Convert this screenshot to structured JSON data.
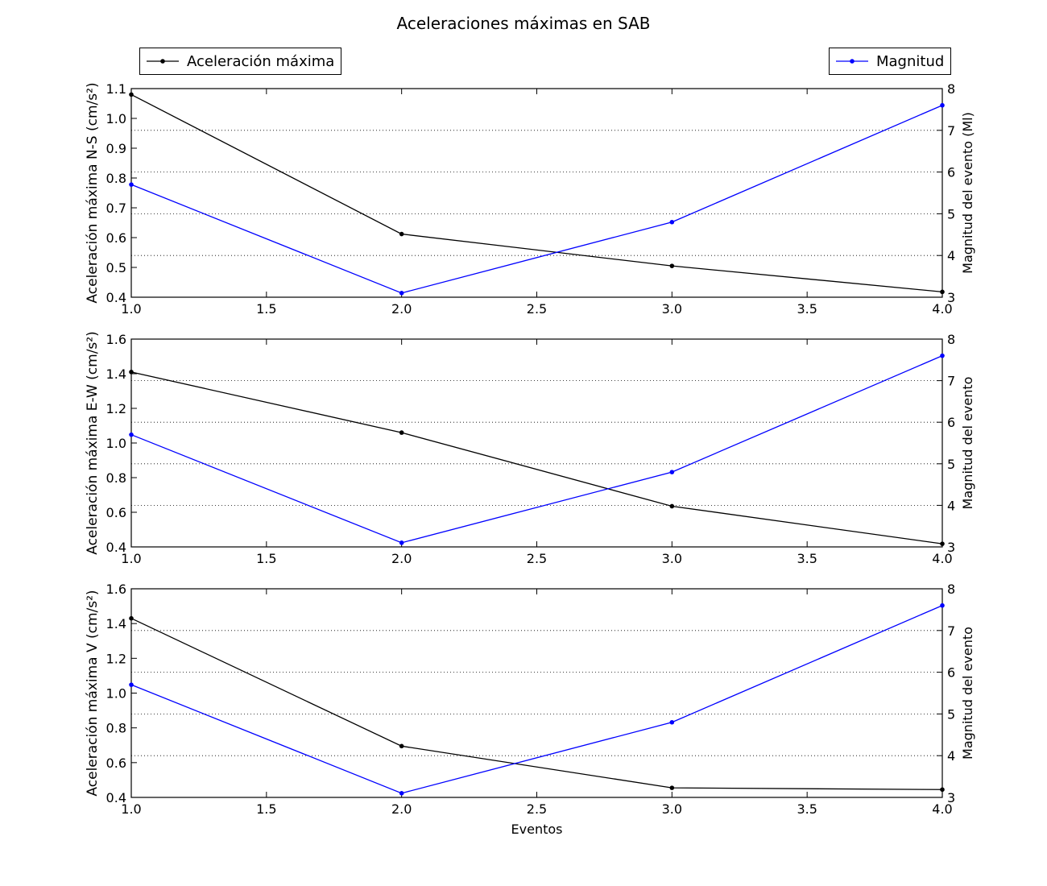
{
  "figure": {
    "title": "Aceleraciones máximas en SAB",
    "legend_left": "Aceleración máxima",
    "legend_right": "Magnitud",
    "colors": {
      "acceleration": "#000000",
      "magnitude": "#0000ff"
    }
  },
  "chart_data": [
    {
      "type": "line",
      "x": [
        1.0,
        2.0,
        3.0,
        4.0
      ],
      "xlim": [
        1.0,
        4.0
      ],
      "xticks": [
        "1.0",
        "1.5",
        "2.0",
        "2.5",
        "3.0",
        "3.5",
        "4.0"
      ],
      "xlabel": "",
      "ylabel": "Aceleración máxima N-S (cm/s²)",
      "ylim": [
        0.4,
        1.1
      ],
      "yticks": [
        "0.4",
        "0.5",
        "0.6",
        "0.7",
        "0.8",
        "0.9",
        "1.0",
        "1.1"
      ],
      "y2label": "Magnitud del evento (Ml)",
      "y2lim": [
        3,
        8
      ],
      "y2ticks": [
        "3",
        "4",
        "5",
        "6",
        "7",
        "8"
      ],
      "grid": "y2-dotted",
      "series": [
        {
          "name": "Aceleración máxima",
          "axis": "left",
          "values": [
            1.08,
            0.612,
            0.505,
            0.418
          ]
        },
        {
          "name": "Magnitud",
          "axis": "right",
          "values": [
            5.7,
            3.1,
            4.8,
            7.6
          ]
        }
      ]
    },
    {
      "type": "line",
      "x": [
        1.0,
        2.0,
        3.0,
        4.0
      ],
      "xlim": [
        1.0,
        4.0
      ],
      "xticks": [
        "1.0",
        "1.5",
        "2.0",
        "2.5",
        "3.0",
        "3.5",
        "4.0"
      ],
      "xlabel": "",
      "ylabel": "Aceleración máxima E-W (cm/s²)",
      "ylim": [
        0.4,
        1.6
      ],
      "yticks": [
        "0.4",
        "0.6",
        "0.8",
        "1.0",
        "1.2",
        "1.4",
        "1.6"
      ],
      "y2label": "Magnitud del evento",
      "y2lim": [
        3,
        8
      ],
      "y2ticks": [
        "3",
        "4",
        "5",
        "6",
        "7",
        "8"
      ],
      "grid": "y2-dotted",
      "series": [
        {
          "name": "Aceleración máxima",
          "axis": "left",
          "values": [
            1.41,
            1.06,
            0.635,
            0.418
          ]
        },
        {
          "name": "Magnitud",
          "axis": "right",
          "values": [
            5.7,
            3.1,
            4.8,
            7.6
          ]
        }
      ]
    },
    {
      "type": "line",
      "x": [
        1.0,
        2.0,
        3.0,
        4.0
      ],
      "xlim": [
        1.0,
        4.0
      ],
      "xticks": [
        "1.0",
        "1.5",
        "2.0",
        "2.5",
        "3.0",
        "3.5",
        "4.0"
      ],
      "xlabel": "Eventos",
      "ylabel": "Aceleración máxima V (cm/s²)",
      "ylim": [
        0.4,
        1.6
      ],
      "yticks": [
        "0.4",
        "0.6",
        "0.8",
        "1.0",
        "1.2",
        "1.4",
        "1.6"
      ],
      "y2label": "Magnitud del evento",
      "y2lim": [
        3,
        8
      ],
      "y2ticks": [
        "3",
        "4",
        "5",
        "6",
        "7",
        "8"
      ],
      "grid": "y2-dotted",
      "series": [
        {
          "name": "Aceleración máxima",
          "axis": "left",
          "values": [
            1.43,
            0.695,
            0.455,
            0.445
          ]
        },
        {
          "name": "Magnitud",
          "axis": "right",
          "values": [
            5.7,
            3.1,
            4.8,
            7.6
          ]
        }
      ]
    }
  ]
}
